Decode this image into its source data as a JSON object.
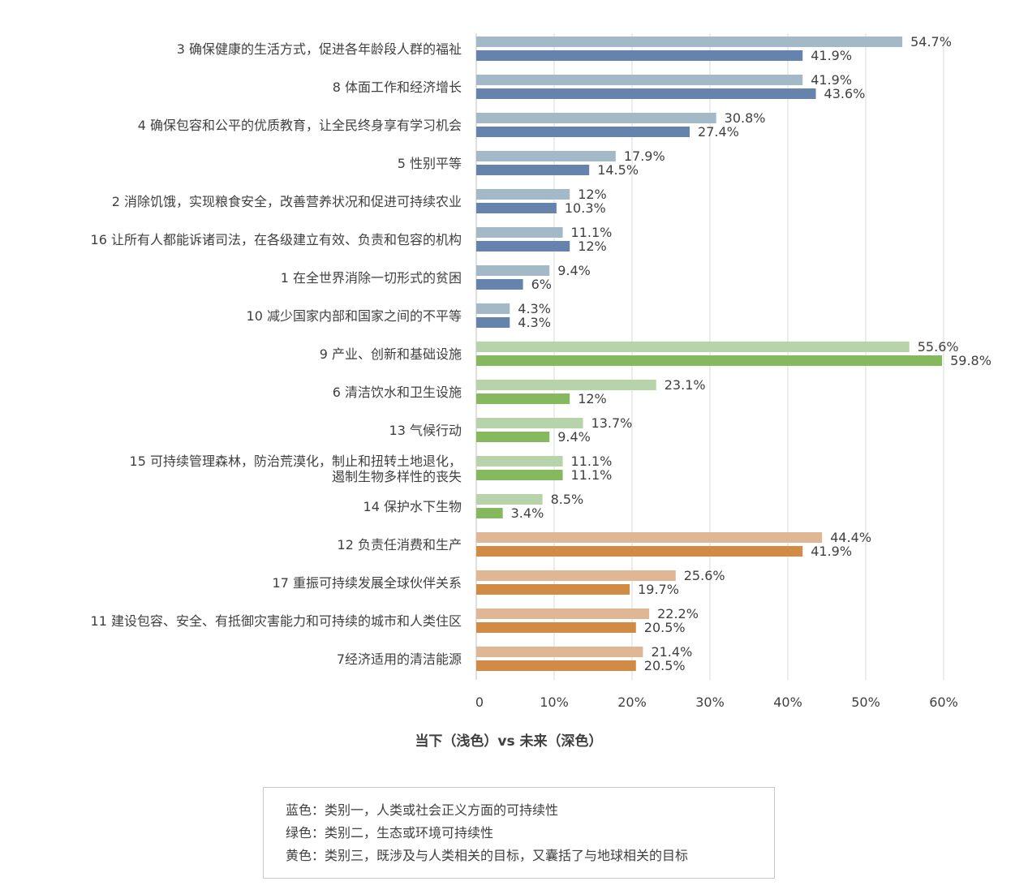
{
  "chart_data": {
    "type": "bar",
    "orientation": "horizontal",
    "xlabel": "当下（浅色）vs 未来（深色）",
    "xlim": [
      0,
      60
    ],
    "xticks": [
      "0",
      "10%",
      "20%",
      "30%",
      "40%",
      "50%",
      "60%"
    ],
    "grid": "vertical",
    "groups": [
      {
        "category": "3 确保健康的生活方式，促进各年龄段人群的福祉",
        "group": "blue",
        "current": 54.7,
        "current_label": "54.7%",
        "future": 41.9,
        "future_label": "41.9%"
      },
      {
        "category": "8 体面工作和经济增长",
        "group": "blue",
        "current": 41.9,
        "current_label": "41.9%",
        "future": 43.6,
        "future_label": "43.6%"
      },
      {
        "category": "4 确保包容和公平的优质教育，让全民终身享有学习机会",
        "group": "blue",
        "current": 30.8,
        "current_label": "30.8%",
        "future": 27.4,
        "future_label": "27.4%"
      },
      {
        "category": "5 性别平等",
        "group": "blue",
        "current": 17.9,
        "current_label": "17.9%",
        "future": 14.5,
        "future_label": "14.5%"
      },
      {
        "category": "2 消除饥饿，实现粮食安全，改善营养状况和促进可持续农业",
        "group": "blue",
        "current": 12,
        "current_label": "12%",
        "future": 10.3,
        "future_label": "10.3%"
      },
      {
        "category": "16 让所有人都能诉诸司法，在各级建立有效、负责和包容的机构",
        "group": "blue",
        "current": 11.1,
        "current_label": "11.1%",
        "future": 12,
        "future_label": "12%"
      },
      {
        "category": "1 在全世界消除一切形式的贫困",
        "group": "blue",
        "current": 9.4,
        "current_label": "9.4%",
        "future": 6,
        "future_label": "6%"
      },
      {
        "category": "10 减少国家内部和国家之间的不平等",
        "group": "blue",
        "current": 4.3,
        "current_label": "4.3%",
        "future": 4.3,
        "future_label": "4.3%"
      },
      {
        "category": "9 产业、创新和基础设施",
        "group": "green",
        "current": 55.6,
        "current_label": "55.6%",
        "future": 59.8,
        "future_label": "59.8%"
      },
      {
        "category": "6 清洁饮水和卫生设施",
        "group": "green",
        "current": 23.1,
        "current_label": "23.1%",
        "future": 12,
        "future_label": "12%"
      },
      {
        "category": "13 气候行动",
        "group": "green",
        "current": 13.7,
        "current_label": "13.7%",
        "future": 9.4,
        "future_label": "9.4%"
      },
      {
        "category": "15 可持续管理森林，防治荒漠化，制止和扭转土地退化，遏制生物多样性的丧失",
        "category_lines": [
          "15 可持续管理森林，防治荒漠化，制止和扭转土地退化，",
          "遏制生物多样性的丧失"
        ],
        "group": "green",
        "current": 11.1,
        "current_label": "11.1%",
        "future": 11.1,
        "future_label": "11.1%"
      },
      {
        "category": "14 保护水下生物",
        "group": "green",
        "current": 8.5,
        "current_label": "8.5%",
        "future": 3.4,
        "future_label": "3.4%"
      },
      {
        "category": "12 负责任消费和生产",
        "group": "orange",
        "current": 44.4,
        "current_label": "44.4%",
        "future": 41.9,
        "future_label": "41.9%"
      },
      {
        "category": "17 重振可持续发展全球伙伴关系",
        "group": "orange",
        "current": 25.6,
        "current_label": "25.6%",
        "future": 19.7,
        "future_label": "19.7%"
      },
      {
        "category": "11 建设包容、安全、有抵御灾害能力和可持续的城市和人类住区",
        "group": "orange",
        "current": 22.2,
        "current_label": "22.2%",
        "future": 20.5,
        "future_label": "20.5%"
      },
      {
        "category": "7经济适用的清洁能源",
        "group": "orange",
        "current": 21.4,
        "current_label": "21.4%",
        "future": 20.5,
        "future_label": "20.5%"
      }
    ]
  },
  "colors": {
    "blue": {
      "light": "#a3b9c8",
      "dark": "#6683ad"
    },
    "green": {
      "light": "#b7d3a9",
      "dark": "#86b95e"
    },
    "orange": {
      "light": "#dfb794",
      "dark": "#d28b44"
    },
    "grid": "#d9d9d9",
    "text": "#404040"
  },
  "legend": {
    "lines": [
      "蓝色：类别一，人类或社会正义方面的可持续性",
      "绿色：类别二，生态或环境可持续性",
      "黄色：类别三，既涉及与人类相关的目标，又囊括了与地球相关的目标"
    ]
  }
}
